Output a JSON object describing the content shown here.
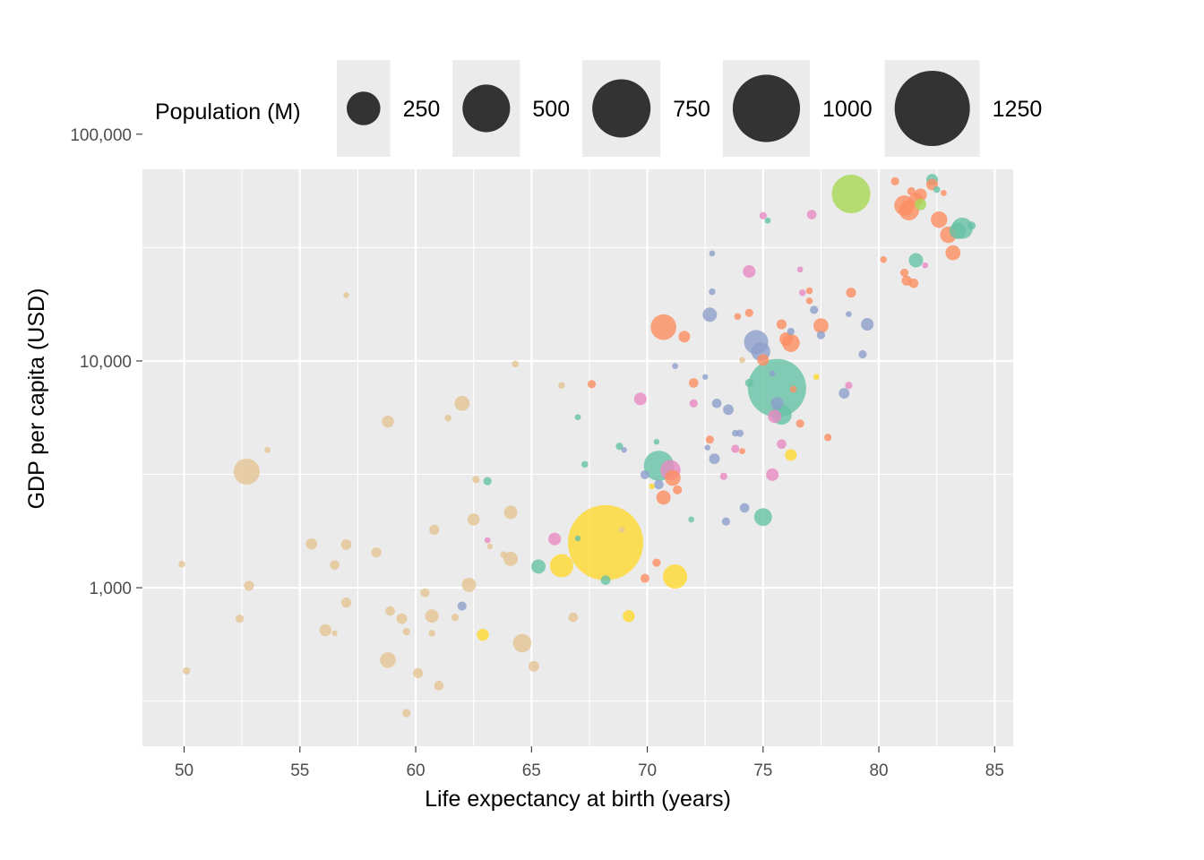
{
  "chart_data": {
    "type": "scatter",
    "title": "",
    "xlabel": "Life expectancy at birth (years)",
    "ylabel": "GDP per capita (USD)",
    "xlim": [
      48.2,
      85.8
    ],
    "ylim": [
      200,
      70000
    ],
    "yscale": "log10",
    "x_ticks": [
      50,
      55,
      60,
      65,
      70,
      75,
      80,
      85
    ],
    "x_tick_labels": [
      "50",
      "55",
      "60",
      "65",
      "70",
      "75",
      "80",
      "85"
    ],
    "y_ticks": [
      1000,
      10000,
      100000
    ],
    "y_tick_labels": [
      "1,000",
      "10,000",
      "100,000"
    ],
    "grid": true,
    "legend": {
      "title": "Population (M)",
      "placement": "top",
      "sizes": [
        250,
        500,
        750,
        1000,
        1250
      ],
      "labels": [
        "250",
        "500",
        "750",
        "1000",
        "1250"
      ]
    },
    "colors": {
      "africa": "#e5c494",
      "east_asia": "#ffd92f",
      "europe": "#fc8d62",
      "americas": "#66c2a5",
      "middle_east": "#e78ac3",
      "europe_asia": "#8da0cb",
      "north_america": "#a6d854"
    },
    "points": [
      {
        "x": 49.9,
        "y": 1270,
        "pop": 10,
        "g": "africa"
      },
      {
        "x": 50.1,
        "y": 430,
        "pop": 12,
        "g": "africa"
      },
      {
        "x": 52.4,
        "y": 730,
        "pop": 15,
        "g": "africa"
      },
      {
        "x": 52.7,
        "y": 3250,
        "pop": 150,
        "g": "africa"
      },
      {
        "x": 52.8,
        "y": 1020,
        "pop": 22,
        "g": "africa"
      },
      {
        "x": 53.6,
        "y": 4050,
        "pop": 8,
        "g": "africa"
      },
      {
        "x": 55.5,
        "y": 1560,
        "pop": 28,
        "g": "africa"
      },
      {
        "x": 56.1,
        "y": 650,
        "pop": 32,
        "g": "africa"
      },
      {
        "x": 56.5,
        "y": 1260,
        "pop": 20,
        "g": "africa"
      },
      {
        "x": 56.5,
        "y": 630,
        "pop": 5,
        "g": "africa"
      },
      {
        "x": 57.0,
        "y": 19500,
        "pop": 5,
        "g": "africa"
      },
      {
        "x": 57.0,
        "y": 1550,
        "pop": 25,
        "g": "africa"
      },
      {
        "x": 57.0,
        "y": 860,
        "pop": 22,
        "g": "africa"
      },
      {
        "x": 58.3,
        "y": 1430,
        "pop": 22,
        "g": "africa"
      },
      {
        "x": 58.8,
        "y": 5400,
        "pop": 32,
        "g": "africa"
      },
      {
        "x": 58.9,
        "y": 790,
        "pop": 20,
        "g": "africa"
      },
      {
        "x": 58.8,
        "y": 480,
        "pop": 55,
        "g": "africa"
      },
      {
        "x": 59.4,
        "y": 730,
        "pop": 25,
        "g": "africa"
      },
      {
        "x": 59.6,
        "y": 640,
        "pop": 12,
        "g": "africa"
      },
      {
        "x": 59.6,
        "y": 280,
        "pop": 15,
        "g": "africa"
      },
      {
        "x": 60.1,
        "y": 420,
        "pop": 22,
        "g": "africa"
      },
      {
        "x": 60.4,
        "y": 950,
        "pop": 18,
        "g": "africa"
      },
      {
        "x": 60.7,
        "y": 750,
        "pop": 40,
        "g": "africa"
      },
      {
        "x": 60.7,
        "y": 630,
        "pop": 10,
        "g": "africa"
      },
      {
        "x": 60.8,
        "y": 1800,
        "pop": 22,
        "g": "africa"
      },
      {
        "x": 61.0,
        "y": 370,
        "pop": 20,
        "g": "africa"
      },
      {
        "x": 61.4,
        "y": 5600,
        "pop": 10,
        "g": "africa"
      },
      {
        "x": 61.7,
        "y": 740,
        "pop": 12,
        "g": "africa"
      },
      {
        "x": 62.0,
        "y": 6500,
        "pop": 50,
        "g": "africa"
      },
      {
        "x": 62.0,
        "y": 830,
        "pop": 18,
        "g": "europe_asia"
      },
      {
        "x": 62.3,
        "y": 1030,
        "pop": 45,
        "g": "africa"
      },
      {
        "x": 62.5,
        "y": 2000,
        "pop": 32,
        "g": "africa"
      },
      {
        "x": 62.6,
        "y": 3000,
        "pop": 12,
        "g": "africa"
      },
      {
        "x": 62.9,
        "y": 620,
        "pop": 32,
        "g": "east_asia"
      },
      {
        "x": 63.1,
        "y": 2950,
        "pop": 15,
        "g": "americas"
      },
      {
        "x": 63.1,
        "y": 1620,
        "pop": 8,
        "g": "middle_east"
      },
      {
        "x": 63.2,
        "y": 1520,
        "pop": 6,
        "g": "africa"
      },
      {
        "x": 63.8,
        "y": 1400,
        "pop": 10,
        "g": "africa"
      },
      {
        "x": 64.1,
        "y": 1340,
        "pop": 45,
        "g": "africa"
      },
      {
        "x": 64.1,
        "y": 2150,
        "pop": 40,
        "g": "africa"
      },
      {
        "x": 64.3,
        "y": 9700,
        "pop": 10,
        "g": "africa"
      },
      {
        "x": 64.6,
        "y": 570,
        "pop": 75,
        "g": "africa"
      },
      {
        "x": 65.1,
        "y": 450,
        "pop": 25,
        "g": "africa"
      },
      {
        "x": 65.3,
        "y": 1240,
        "pop": 45,
        "g": "americas"
      },
      {
        "x": 66.0,
        "y": 1640,
        "pop": 35,
        "g": "middle_east"
      },
      {
        "x": 66.3,
        "y": 1250,
        "pop": 120,
        "g": "east_asia"
      },
      {
        "x": 66.3,
        "y": 7800,
        "pop": 10,
        "g": "africa"
      },
      {
        "x": 66.8,
        "y": 740,
        "pop": 20,
        "g": "africa"
      },
      {
        "x": 67.0,
        "y": 5650,
        "pop": 8,
        "g": "americas"
      },
      {
        "x": 67.0,
        "y": 1650,
        "pop": 5,
        "g": "americas"
      },
      {
        "x": 67.3,
        "y": 3500,
        "pop": 10,
        "g": "americas"
      },
      {
        "x": 67.6,
        "y": 7900,
        "pop": 15,
        "g": "europe"
      },
      {
        "x": 68.2,
        "y": 1580,
        "pop": 1250,
        "g": "east_asia"
      },
      {
        "x": 68.2,
        "y": 1080,
        "pop": 20,
        "g": "americas"
      },
      {
        "x": 68.8,
        "y": 4200,
        "pop": 12,
        "g": "americas"
      },
      {
        "x": 68.9,
        "y": 1800,
        "pop": 5,
        "g": "africa"
      },
      {
        "x": 69.0,
        "y": 4050,
        "pop": 5,
        "g": "europe_asia"
      },
      {
        "x": 69.2,
        "y": 750,
        "pop": 32,
        "g": "east_asia"
      },
      {
        "x": 69.7,
        "y": 6800,
        "pop": 35,
        "g": "middle_east"
      },
      {
        "x": 69.9,
        "y": 3150,
        "pop": 18,
        "g": "europe_asia"
      },
      {
        "x": 69.9,
        "y": 1100,
        "pop": 18,
        "g": "europe"
      },
      {
        "x": 70.2,
        "y": 2800,
        "pop": 6,
        "g": "east_asia"
      },
      {
        "x": 70.5,
        "y": 3450,
        "pop": 200,
        "g": "americas"
      },
      {
        "x": 70.4,
        "y": 4400,
        "pop": 6,
        "g": "americas"
      },
      {
        "x": 70.4,
        "y": 1290,
        "pop": 15,
        "g": "europe"
      },
      {
        "x": 70.5,
        "y": 2850,
        "pop": 20,
        "g": "europe_asia"
      },
      {
        "x": 70.7,
        "y": 14100,
        "pop": 145,
        "g": "europe"
      },
      {
        "x": 70.7,
        "y": 2500,
        "pop": 45,
        "g": "europe"
      },
      {
        "x": 71.0,
        "y": 3300,
        "pop": 90,
        "g": "middle_east"
      },
      {
        "x": 71.1,
        "y": 3050,
        "pop": 55,
        "g": "europe"
      },
      {
        "x": 71.2,
        "y": 1120,
        "pop": 130,
        "g": "east_asia"
      },
      {
        "x": 71.2,
        "y": 9500,
        "pop": 8,
        "g": "europe_asia"
      },
      {
        "x": 71.3,
        "y": 2700,
        "pop": 18,
        "g": "europe"
      },
      {
        "x": 71.6,
        "y": 12800,
        "pop": 30,
        "g": "europe"
      },
      {
        "x": 71.9,
        "y": 2000,
        "pop": 8,
        "g": "americas"
      },
      {
        "x": 72.0,
        "y": 8000,
        "pop": 20,
        "g": "europe"
      },
      {
        "x": 72.0,
        "y": 6500,
        "pop": 15,
        "g": "middle_east"
      },
      {
        "x": 72.5,
        "y": 8500,
        "pop": 5,
        "g": "europe_asia"
      },
      {
        "x": 72.6,
        "y": 4150,
        "pop": 6,
        "g": "europe_asia"
      },
      {
        "x": 72.7,
        "y": 4500,
        "pop": 15,
        "g": "europe"
      },
      {
        "x": 72.7,
        "y": 16000,
        "pop": 45,
        "g": "europe_asia"
      },
      {
        "x": 72.8,
        "y": 20200,
        "pop": 10,
        "g": "europe_asia"
      },
      {
        "x": 72.8,
        "y": 29800,
        "pop": 8,
        "g": "europe_asia"
      },
      {
        "x": 72.9,
        "y": 3700,
        "pop": 25,
        "g": "europe_asia"
      },
      {
        "x": 73.0,
        "y": 6500,
        "pop": 20,
        "g": "europe_asia"
      },
      {
        "x": 73.3,
        "y": 3100,
        "pop": 12,
        "g": "middle_east"
      },
      {
        "x": 73.4,
        "y": 1960,
        "pop": 15,
        "g": "europe_asia"
      },
      {
        "x": 73.5,
        "y": 6100,
        "pop": 25,
        "g": "europe_asia"
      },
      {
        "x": 73.8,
        "y": 4800,
        "pop": 10,
        "g": "europe_asia"
      },
      {
        "x": 73.8,
        "y": 4100,
        "pop": 15,
        "g": "middle_east"
      },
      {
        "x": 73.9,
        "y": 15700,
        "pop": 10,
        "g": "europe"
      },
      {
        "x": 74.0,
        "y": 4800,
        "pop": 12,
        "g": "europe_asia"
      },
      {
        "x": 74.1,
        "y": 4000,
        "pop": 8,
        "g": "europe"
      },
      {
        "x": 74.1,
        "y": 10100,
        "pop": 8,
        "g": "africa"
      },
      {
        "x": 74.2,
        "y": 2250,
        "pop": 20,
        "g": "europe_asia"
      },
      {
        "x": 74.4,
        "y": 8000,
        "pop": 15,
        "g": "americas"
      },
      {
        "x": 74.4,
        "y": 24800,
        "pop": 35,
        "g": "middle_east"
      },
      {
        "x": 74.4,
        "y": 16300,
        "pop": 15,
        "g": "europe"
      },
      {
        "x": 74.7,
        "y": 12100,
        "pop": 130,
        "g": "europe_asia"
      },
      {
        "x": 74.9,
        "y": 11000,
        "pop": 80,
        "g": "europe_asia"
      },
      {
        "x": 75.0,
        "y": 2050,
        "pop": 70,
        "g": "americas"
      },
      {
        "x": 75.0,
        "y": 43700,
        "pop": 12,
        "g": "middle_east"
      },
      {
        "x": 75.0,
        "y": 10100,
        "pop": 30,
        "g": "europe"
      },
      {
        "x": 75.2,
        "y": 41600,
        "pop": 8,
        "g": "americas"
      },
      {
        "x": 75.6,
        "y": 7600,
        "pop": 750,
        "g": "americas"
      },
      {
        "x": 75.6,
        "y": 6500,
        "pop": 35,
        "g": "europe_asia"
      },
      {
        "x": 75.5,
        "y": 5700,
        "pop": 40,
        "g": "middle_east"
      },
      {
        "x": 75.4,
        "y": 3150,
        "pop": 35,
        "g": "middle_east"
      },
      {
        "x": 75.4,
        "y": 8800,
        "pop": 6,
        "g": "europe_asia"
      },
      {
        "x": 75.8,
        "y": 4300,
        "pop": 20,
        "g": "middle_east"
      },
      {
        "x": 75.8,
        "y": 14500,
        "pop": 22,
        "g": "europe"
      },
      {
        "x": 75.8,
        "y": 5800,
        "pop": 90,
        "g": "americas"
      },
      {
        "x": 76.0,
        "y": 12500,
        "pop": 40,
        "g": "europe"
      },
      {
        "x": 76.2,
        "y": 3850,
        "pop": 30,
        "g": "east_asia"
      },
      {
        "x": 76.2,
        "y": 12000,
        "pop": 70,
        "g": "europe"
      },
      {
        "x": 76.2,
        "y": 13500,
        "pop": 12,
        "g": "europe_asia"
      },
      {
        "x": 76.3,
        "y": 7500,
        "pop": 10,
        "g": "europe"
      },
      {
        "x": 76.6,
        "y": 5300,
        "pop": 15,
        "g": "europe"
      },
      {
        "x": 76.6,
        "y": 25300,
        "pop": 8,
        "g": "middle_east"
      },
      {
        "x": 76.7,
        "y": 20000,
        "pop": 10,
        "g": "middle_east"
      },
      {
        "x": 77.0,
        "y": 20400,
        "pop": 10,
        "g": "europe"
      },
      {
        "x": 77.0,
        "y": 18400,
        "pop": 10,
        "g": "europe"
      },
      {
        "x": 77.1,
        "y": 44200,
        "pop": 20,
        "g": "middle_east"
      },
      {
        "x": 77.2,
        "y": 16800,
        "pop": 15,
        "g": "europe_asia"
      },
      {
        "x": 77.3,
        "y": 8500,
        "pop": 8,
        "g": "east_asia"
      },
      {
        "x": 77.5,
        "y": 14300,
        "pop": 50,
        "g": "europe"
      },
      {
        "x": 77.5,
        "y": 13000,
        "pop": 15,
        "g": "europe_asia"
      },
      {
        "x": 77.8,
        "y": 4600,
        "pop": 12,
        "g": "europe"
      },
      {
        "x": 78.5,
        "y": 7200,
        "pop": 25,
        "g": "europe_asia"
      },
      {
        "x": 78.7,
        "y": 7800,
        "pop": 12,
        "g": "middle_east"
      },
      {
        "x": 78.7,
        "y": 16100,
        "pop": 8,
        "g": "europe_asia"
      },
      {
        "x": 78.8,
        "y": 20000,
        "pop": 22,
        "g": "europe"
      },
      {
        "x": 78.8,
        "y": 54500,
        "pop": 330,
        "g": "north_america"
      },
      {
        "x": 79.3,
        "y": 10700,
        "pop": 15,
        "g": "europe_asia"
      },
      {
        "x": 79.5,
        "y": 14500,
        "pop": 35,
        "g": "europe_asia"
      },
      {
        "x": 80.2,
        "y": 28000,
        "pop": 10,
        "g": "europe"
      },
      {
        "x": 80.7,
        "y": 62000,
        "pop": 15,
        "g": "europe"
      },
      {
        "x": 81.1,
        "y": 48500,
        "pop": 90,
        "g": "europe"
      },
      {
        "x": 81.1,
        "y": 24500,
        "pop": 15,
        "g": "europe"
      },
      {
        "x": 81.2,
        "y": 22600,
        "pop": 22,
        "g": "europe"
      },
      {
        "x": 81.3,
        "y": 46200,
        "pop": 90,
        "g": "europe"
      },
      {
        "x": 81.4,
        "y": 56000,
        "pop": 15,
        "g": "europe"
      },
      {
        "x": 81.5,
        "y": 22000,
        "pop": 20,
        "g": "europe"
      },
      {
        "x": 81.6,
        "y": 51500,
        "pop": 40,
        "g": "europe"
      },
      {
        "x": 81.6,
        "y": 27800,
        "pop": 45,
        "g": "americas"
      },
      {
        "x": 81.8,
        "y": 49000,
        "pop": 30,
        "g": "north_america"
      },
      {
        "x": 81.8,
        "y": 54000,
        "pop": 35,
        "g": "europe"
      },
      {
        "x": 82.0,
        "y": 26400,
        "pop": 8,
        "g": "middle_east"
      },
      {
        "x": 82.3,
        "y": 63000,
        "pop": 30,
        "g": "americas"
      },
      {
        "x": 82.3,
        "y": 60000,
        "pop": 30,
        "g": "europe"
      },
      {
        "x": 82.5,
        "y": 57000,
        "pop": 10,
        "g": "americas"
      },
      {
        "x": 82.6,
        "y": 42000,
        "pop": 60,
        "g": "europe"
      },
      {
        "x": 82.8,
        "y": 55000,
        "pop": 8,
        "g": "europe"
      },
      {
        "x": 83.0,
        "y": 36000,
        "pop": 60,
        "g": "europe"
      },
      {
        "x": 83.2,
        "y": 30000,
        "pop": 50,
        "g": "europe"
      },
      {
        "x": 83.4,
        "y": 37500,
        "pop": 60,
        "g": "americas"
      },
      {
        "x": 83.6,
        "y": 38500,
        "pop": 100,
        "g": "americas"
      },
      {
        "x": 84.0,
        "y": 39500,
        "pop": 15,
        "g": "americas"
      }
    ]
  }
}
